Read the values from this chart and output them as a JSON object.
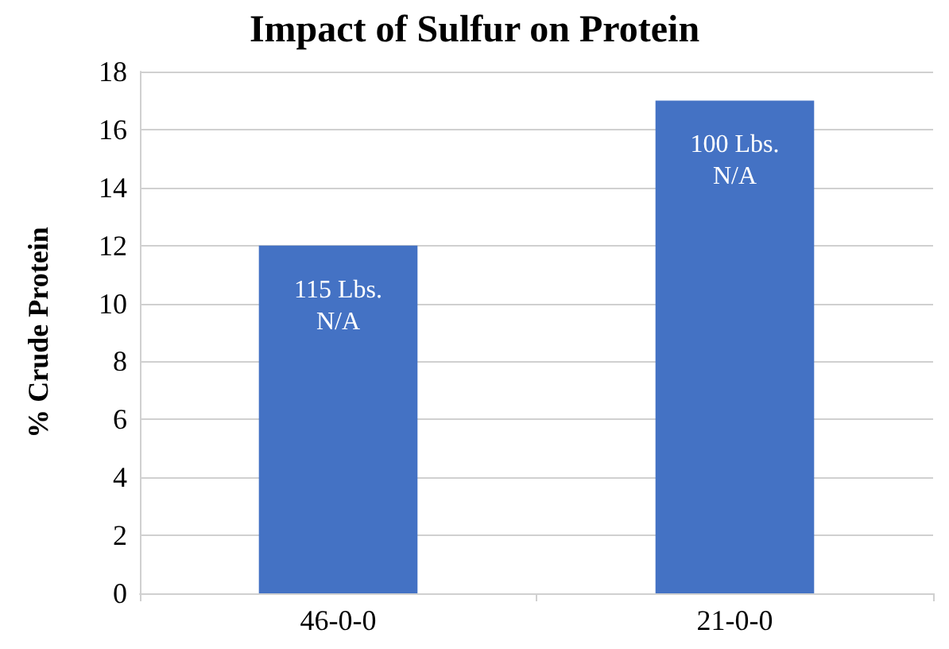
{
  "chart_data": {
    "type": "bar",
    "title": "Impact of Sulfur on Protein",
    "ylabel": "% Crude Protein",
    "categories": [
      "46-0-0",
      "21-0-0"
    ],
    "values": [
      12,
      17
    ],
    "color": "#4472c4",
    "ylim": [
      0,
      18
    ],
    "yticks": [
      0,
      2,
      4,
      6,
      8,
      10,
      12,
      14,
      16,
      18
    ],
    "grid": "y",
    "annotations": [
      "115 Lbs.\nN/A",
      "100 Lbs.\nN/A"
    ]
  }
}
